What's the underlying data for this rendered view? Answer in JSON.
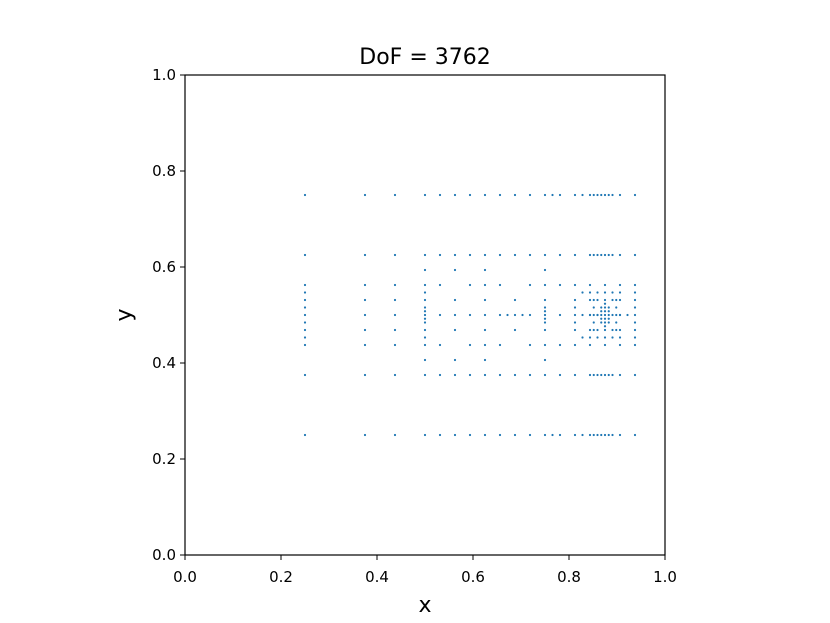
{
  "chart_data": {
    "type": "scatter",
    "title": "DoF = 3762",
    "xlabel": "x",
    "ylabel": "y",
    "xlim": [
      0.0,
      1.0
    ],
    "ylim": [
      0.0,
      1.0
    ],
    "x_ticks": [
      "0.0",
      "0.2",
      "0.4",
      "0.6",
      "0.8",
      "1.0"
    ],
    "y_ticks": [
      "0.0",
      "0.2",
      "0.4",
      "0.6",
      "0.8",
      "1.0"
    ],
    "grid": false,
    "legend": "none",
    "marker_color": "#1f77b4",
    "series": [
      {
        "points": [
          [
            0.25,
            0.75
          ],
          [
            0.375,
            0.75
          ],
          [
            0.4375,
            0.75
          ],
          [
            0.5,
            0.75
          ],
          [
            0.53125,
            0.75
          ],
          [
            0.5625,
            0.75
          ],
          [
            0.59375,
            0.75
          ],
          [
            0.625,
            0.75
          ],
          [
            0.65625,
            0.75
          ],
          [
            0.6875,
            0.75
          ],
          [
            0.71875,
            0.75
          ],
          [
            0.75,
            0.75
          ],
          [
            0.765625,
            0.75
          ],
          [
            0.78125,
            0.75
          ],
          [
            0.8125,
            0.75
          ],
          [
            0.828125,
            0.75
          ],
          [
            0.84375,
            0.75
          ],
          [
            0.8515625,
            0.75
          ],
          [
            0.859375,
            0.75
          ],
          [
            0.8671875,
            0.75
          ],
          [
            0.875,
            0.75
          ],
          [
            0.8828125,
            0.75
          ],
          [
            0.890625,
            0.75
          ],
          [
            0.90625,
            0.75
          ],
          [
            0.9375,
            0.75
          ],
          [
            0.25,
            0.25
          ],
          [
            0.375,
            0.25
          ],
          [
            0.4375,
            0.25
          ],
          [
            0.5,
            0.25
          ],
          [
            0.53125,
            0.25
          ],
          [
            0.5625,
            0.25
          ],
          [
            0.59375,
            0.25
          ],
          [
            0.625,
            0.25
          ],
          [
            0.65625,
            0.25
          ],
          [
            0.6875,
            0.25
          ],
          [
            0.71875,
            0.25
          ],
          [
            0.75,
            0.25
          ],
          [
            0.765625,
            0.25
          ],
          [
            0.78125,
            0.25
          ],
          [
            0.8125,
            0.25
          ],
          [
            0.828125,
            0.25
          ],
          [
            0.84375,
            0.25
          ],
          [
            0.8515625,
            0.25
          ],
          [
            0.859375,
            0.25
          ],
          [
            0.8671875,
            0.25
          ],
          [
            0.875,
            0.25
          ],
          [
            0.8828125,
            0.25
          ],
          [
            0.890625,
            0.25
          ],
          [
            0.90625,
            0.25
          ],
          [
            0.9375,
            0.25
          ],
          [
            0.25,
            0.625
          ],
          [
            0.375,
            0.625
          ],
          [
            0.4375,
            0.625
          ],
          [
            0.5,
            0.625
          ],
          [
            0.53125,
            0.625
          ],
          [
            0.5625,
            0.625
          ],
          [
            0.59375,
            0.625
          ],
          [
            0.625,
            0.625
          ],
          [
            0.65625,
            0.625
          ],
          [
            0.6875,
            0.625
          ],
          [
            0.71875,
            0.625
          ],
          [
            0.75,
            0.625
          ],
          [
            0.78125,
            0.625
          ],
          [
            0.8125,
            0.625
          ],
          [
            0.84375,
            0.625
          ],
          [
            0.8515625,
            0.625
          ],
          [
            0.859375,
            0.625
          ],
          [
            0.8671875,
            0.625
          ],
          [
            0.875,
            0.625
          ],
          [
            0.8828125,
            0.625
          ],
          [
            0.890625,
            0.625
          ],
          [
            0.90625,
            0.625
          ],
          [
            0.9375,
            0.625
          ],
          [
            0.25,
            0.375
          ],
          [
            0.375,
            0.375
          ],
          [
            0.4375,
            0.375
          ],
          [
            0.5,
            0.375
          ],
          [
            0.53125,
            0.375
          ],
          [
            0.5625,
            0.375
          ],
          [
            0.59375,
            0.375
          ],
          [
            0.625,
            0.375
          ],
          [
            0.65625,
            0.375
          ],
          [
            0.6875,
            0.375
          ],
          [
            0.71875,
            0.375
          ],
          [
            0.75,
            0.375
          ],
          [
            0.78125,
            0.375
          ],
          [
            0.8125,
            0.375
          ],
          [
            0.84375,
            0.375
          ],
          [
            0.8515625,
            0.375
          ],
          [
            0.859375,
            0.375
          ],
          [
            0.8671875,
            0.375
          ],
          [
            0.875,
            0.375
          ],
          [
            0.8828125,
            0.375
          ],
          [
            0.890625,
            0.375
          ],
          [
            0.90625,
            0.375
          ],
          [
            0.9375,
            0.375
          ],
          [
            0.25,
            0.5625
          ],
          [
            0.25,
            0.546875
          ],
          [
            0.25,
            0.53125
          ],
          [
            0.25,
            0.515625
          ],
          [
            0.25,
            0.5
          ],
          [
            0.25,
            0.484375
          ],
          [
            0.25,
            0.46875
          ],
          [
            0.25,
            0.453125
          ],
          [
            0.25,
            0.4375
          ],
          [
            0.375,
            0.5625
          ],
          [
            0.375,
            0.53125
          ],
          [
            0.375,
            0.5
          ],
          [
            0.375,
            0.46875
          ],
          [
            0.375,
            0.4375
          ],
          [
            0.4375,
            0.5625
          ],
          [
            0.4375,
            0.53125
          ],
          [
            0.4375,
            0.5
          ],
          [
            0.4375,
            0.46875
          ],
          [
            0.4375,
            0.4375
          ],
          [
            0.5,
            0.59375
          ],
          [
            0.5,
            0.5625
          ],
          [
            0.5,
            0.546875
          ],
          [
            0.5,
            0.53125
          ],
          [
            0.5,
            0.515625
          ],
          [
            0.5,
            0.5078125
          ],
          [
            0.5,
            0.5
          ],
          [
            0.5,
            0.4921875
          ],
          [
            0.5,
            0.484375
          ],
          [
            0.5,
            0.46875
          ],
          [
            0.5,
            0.453125
          ],
          [
            0.5,
            0.4375
          ],
          [
            0.5,
            0.40625
          ],
          [
            0.53125,
            0.5625
          ],
          [
            0.53125,
            0.5
          ],
          [
            0.53125,
            0.4375
          ],
          [
            0.5625,
            0.59375
          ],
          [
            0.5625,
            0.53125
          ],
          [
            0.5625,
            0.5
          ],
          [
            0.5625,
            0.46875
          ],
          [
            0.5625,
            0.40625
          ],
          [
            0.59375,
            0.5625
          ],
          [
            0.59375,
            0.5
          ],
          [
            0.59375,
            0.4375
          ],
          [
            0.625,
            0.59375
          ],
          [
            0.625,
            0.5625
          ],
          [
            0.625,
            0.53125
          ],
          [
            0.625,
            0.5
          ],
          [
            0.625,
            0.46875
          ],
          [
            0.625,
            0.4375
          ],
          [
            0.625,
            0.40625
          ],
          [
            0.65625,
            0.5625
          ],
          [
            0.65625,
            0.5
          ],
          [
            0.65625,
            0.4375
          ],
          [
            0.671875,
            0.5
          ],
          [
            0.6875,
            0.53125
          ],
          [
            0.6875,
            0.5
          ],
          [
            0.6875,
            0.46875
          ],
          [
            0.703125,
            0.5
          ],
          [
            0.71875,
            0.5625
          ],
          [
            0.71875,
            0.5
          ],
          [
            0.71875,
            0.4375
          ],
          [
            0.75,
            0.59375
          ],
          [
            0.75,
            0.5625
          ],
          [
            0.75,
            0.53125
          ],
          [
            0.75,
            0.515625
          ],
          [
            0.75,
            0.5078125
          ],
          [
            0.75,
            0.5
          ],
          [
            0.75,
            0.4921875
          ],
          [
            0.75,
            0.484375
          ],
          [
            0.75,
            0.46875
          ],
          [
            0.75,
            0.4375
          ],
          [
            0.75,
            0.40625
          ],
          [
            0.78125,
            0.5625
          ],
          [
            0.78125,
            0.5
          ],
          [
            0.78125,
            0.4375
          ],
          [
            0.8125,
            0.5625
          ],
          [
            0.8125,
            0.53125
          ],
          [
            0.8125,
            0.515625
          ],
          [
            0.8125,
            0.5
          ],
          [
            0.8125,
            0.484375
          ],
          [
            0.8125,
            0.46875
          ],
          [
            0.8125,
            0.4375
          ],
          [
            0.828125,
            0.546875
          ],
          [
            0.828125,
            0.5
          ],
          [
            0.828125,
            0.453125
          ],
          [
            0.84375,
            0.5625
          ],
          [
            0.84375,
            0.546875
          ],
          [
            0.84375,
            0.53125
          ],
          [
            0.84375,
            0.5
          ],
          [
            0.84375,
            0.46875
          ],
          [
            0.84375,
            0.453125
          ],
          [
            0.84375,
            0.4375
          ],
          [
            0.8515625,
            0.53125
          ],
          [
            0.8515625,
            0.515625
          ],
          [
            0.8515625,
            0.484375
          ],
          [
            0.8515625,
            0.46875
          ],
          [
            0.859375,
            0.546875
          ],
          [
            0.859375,
            0.53125
          ],
          [
            0.859375,
            0.5
          ],
          [
            0.859375,
            0.46875
          ],
          [
            0.859375,
            0.453125
          ],
          [
            0.8671875,
            0.515625
          ],
          [
            0.8671875,
            0.5078125
          ],
          [
            0.8671875,
            0.5
          ],
          [
            0.8671875,
            0.4921875
          ],
          [
            0.8671875,
            0.484375
          ],
          [
            0.875,
            0.5625
          ],
          [
            0.875,
            0.546875
          ],
          [
            0.875,
            0.53125
          ],
          [
            0.875,
            0.5234375
          ],
          [
            0.875,
            0.515625
          ],
          [
            0.875,
            0.5078125
          ],
          [
            0.875,
            0.5
          ],
          [
            0.875,
            0.4921875
          ],
          [
            0.875,
            0.484375
          ],
          [
            0.875,
            0.4765625
          ],
          [
            0.875,
            0.46875
          ],
          [
            0.875,
            0.453125
          ],
          [
            0.875,
            0.4375
          ],
          [
            0.8828125,
            0.515625
          ],
          [
            0.8828125,
            0.5078125
          ],
          [
            0.8828125,
            0.5
          ],
          [
            0.8828125,
            0.4921875
          ],
          [
            0.8828125,
            0.484375
          ],
          [
            0.890625,
            0.546875
          ],
          [
            0.890625,
            0.53125
          ],
          [
            0.890625,
            0.5
          ],
          [
            0.890625,
            0.46875
          ],
          [
            0.890625,
            0.453125
          ],
          [
            0.8984375,
            0.53125
          ],
          [
            0.8984375,
            0.515625
          ],
          [
            0.8984375,
            0.484375
          ],
          [
            0.8984375,
            0.46875
          ],
          [
            0.90625,
            0.5625
          ],
          [
            0.90625,
            0.546875
          ],
          [
            0.90625,
            0.53125
          ],
          [
            0.90625,
            0.5
          ],
          [
            0.90625,
            0.46875
          ],
          [
            0.90625,
            0.453125
          ],
          [
            0.90625,
            0.4375
          ],
          [
            0.921875,
            0.5
          ],
          [
            0.9375,
            0.5625
          ],
          [
            0.9375,
            0.546875
          ],
          [
            0.9375,
            0.53125
          ],
          [
            0.9375,
            0.515625
          ],
          [
            0.9375,
            0.5
          ],
          [
            0.9375,
            0.484375
          ],
          [
            0.9375,
            0.46875
          ],
          [
            0.9375,
            0.453125
          ],
          [
            0.9375,
            0.4375
          ],
          [
            0.859375,
            0.5
          ],
          [
            0.8515625,
            0.5
          ],
          [
            0.84375,
            0.5
          ],
          [
            0.8984375,
            0.5
          ],
          [
            0.90625,
            0.5
          ]
        ]
      }
    ]
  }
}
